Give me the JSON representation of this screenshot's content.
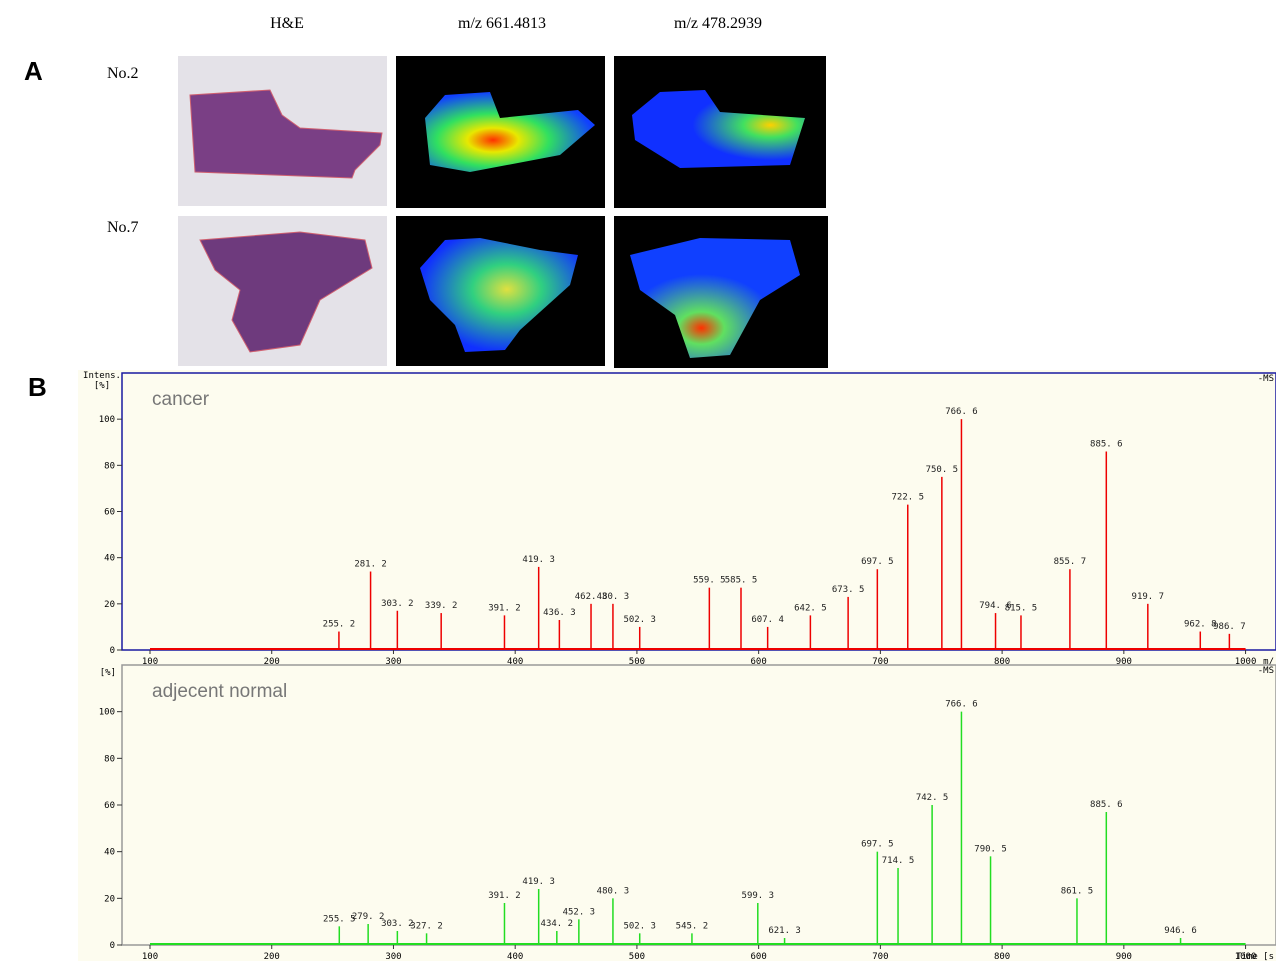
{
  "figure": {
    "panel_labels": [
      "A",
      "B"
    ],
    "columns": [
      "H&E",
      "m/z 661.4813",
      "m/z 478.2939"
    ],
    "rows": [
      "No.2",
      "No.7"
    ]
  },
  "chart_data": [
    {
      "type": "stem",
      "title": "cancer",
      "color": "#ee0000",
      "x": [
        255.2,
        281.2,
        303.2,
        339.2,
        391.2,
        419.3,
        436.3,
        462.3,
        480.3,
        502.3,
        559.5,
        585.5,
        607.4,
        642.5,
        673.5,
        697.5,
        722.5,
        750.5,
        766.6,
        794.6,
        815.5,
        855.7,
        885.6,
        919.7,
        962.8,
        986.7
      ],
      "x_labels": [
        "255. 2",
        "281. 2",
        "303. 2",
        "339. 2",
        "391. 2",
        "419. 3",
        "436. 3",
        "462. 3",
        "480. 3",
        "502. 3",
        "559. 5",
        "585. 5",
        "607. 4",
        "642. 5",
        "673. 5",
        "697. 5",
        "722. 5",
        "750. 5",
        "766. 6",
        "794. 6",
        "815. 5",
        "855. 7",
        "885. 6",
        "919. 7",
        "962. 8",
        "986. 7"
      ],
      "values": [
        8,
        34,
        17,
        16,
        15,
        36,
        13,
        20,
        20,
        10,
        27,
        27,
        10,
        15,
        23,
        35,
        63,
        75,
        100,
        16,
        15,
        35,
        86,
        20,
        8,
        7
      ],
      "xlim": [
        77,
        1025
      ],
      "ylim": [
        0,
        120
      ],
      "xticks": [
        100,
        200,
        300,
        400,
        500,
        600,
        700,
        800,
        900,
        1000
      ],
      "yticks": [
        0,
        20,
        40,
        60,
        80,
        100
      ],
      "ylabel_lines": [
        "Intens.",
        "[%]"
      ],
      "xlabel": "m/",
      "corner_label": "-MS"
    },
    {
      "type": "stem",
      "title": "adjecent normal",
      "color": "#22dd22",
      "x": [
        255.5,
        279.2,
        303.2,
        327.2,
        391.2,
        419.3,
        434.2,
        452.3,
        480.3,
        502.3,
        545.2,
        599.3,
        621.3,
        697.5,
        714.5,
        742.5,
        766.6,
        790.5,
        861.5,
        885.6,
        946.6
      ],
      "x_labels": [
        "255. 5",
        "279. 2",
        "303. 2",
        "327. 2",
        "391. 2",
        "419. 3",
        "434. 2",
        "452. 3",
        "480. 3",
        "502. 3",
        "545. 2",
        "599. 3",
        "621. 3",
        "697. 5",
        "714. 5",
        "742. 5",
        "766. 6",
        "790. 5",
        "861. 5",
        "885. 6",
        "946. 6"
      ],
      "values": [
        8,
        9,
        6,
        5,
        18,
        24,
        6,
        11,
        20,
        5,
        5,
        18,
        3,
        40,
        33,
        60,
        100,
        38,
        20,
        57,
        3
      ],
      "xlim": [
        77,
        1025
      ],
      "ylim": [
        0,
        120
      ],
      "xticks": [
        100,
        200,
        300,
        400,
        500,
        600,
        700,
        800,
        900,
        1000
      ],
      "yticks": [
        0,
        20,
        40,
        60,
        80,
        100
      ],
      "ylabel_lines": [
        "[%]"
      ],
      "xlabel": "Time [s",
      "corner_label": "-MS"
    }
  ]
}
